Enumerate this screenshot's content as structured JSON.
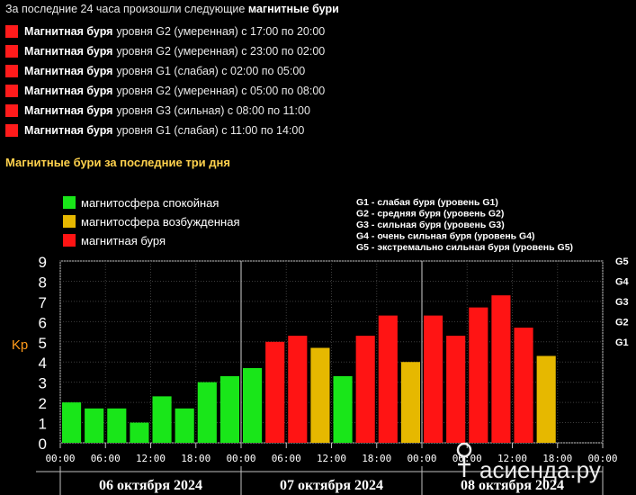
{
  "header": {
    "prefix": "За последние 24 часа произошли следующие",
    "emph": "магнитные бури"
  },
  "storms": [
    {
      "name": "Магнитная буря",
      "detail": "уровня G2 (умеренная) с 17:00 по 20:00"
    },
    {
      "name": "Магнитная буря",
      "detail": "уровня G2 (умеренная) с 23:00 по 02:00"
    },
    {
      "name": "Магнитная буря",
      "detail": "уровня G1 (слабая) с 02:00 по 05:00"
    },
    {
      "name": "Магнитная буря",
      "detail": "уровня G2 (умеренная) с 05:00 по 08:00"
    },
    {
      "name": "Магнитная буря",
      "detail": "уровня G3 (сильная) с 08:00 по 11:00"
    },
    {
      "name": "Магнитная буря",
      "detail": "уровня G1 (слабая) с 11:00 по 14:00"
    }
  ],
  "colors": {
    "quiet": "#19e619",
    "excited": "#e6b800",
    "storm": "#ff1414",
    "storm_marker": "#ff1b1b",
    "subtitle": "#ffd24d",
    "kp": "#ff9a1a"
  },
  "chart_data": {
    "type": "bar",
    "title": "Магнитные бури за последние три дня",
    "ylabel": "Kp",
    "ylim": [
      0,
      9
    ],
    "y_ticks": [
      0,
      1,
      2,
      3,
      4,
      5,
      6,
      7,
      8,
      9
    ],
    "g_ticks": [
      {
        "label": "G1",
        "kp": 5
      },
      {
        "label": "G2",
        "kp": 6
      },
      {
        "label": "G3",
        "kp": 7
      },
      {
        "label": "G4",
        "kp": 8
      },
      {
        "label": "G5",
        "kp": 9
      }
    ],
    "x_tick_labels": [
      "00:00",
      "06:00",
      "12:00",
      "18:00",
      "00:00",
      "06:00",
      "12:00",
      "18:00",
      "00:00",
      "06:00",
      "12:00",
      "18:00",
      "00:00"
    ],
    "days": [
      "06 октября 2024",
      "07 октября 2024",
      "08 октября 2024"
    ],
    "slots_per_day": 8,
    "series": [
      {
        "values": [
          2.0,
          1.7,
          1.7,
          1.0,
          2.3,
          1.7,
          3.0,
          3.3,
          3.7,
          5.0,
          5.3,
          4.7,
          3.3,
          5.3,
          6.3,
          4.0,
          6.3,
          5.3,
          6.7,
          7.3,
          5.7,
          4.3
        ],
        "levels": [
          "quiet",
          "quiet",
          "quiet",
          "quiet",
          "quiet",
          "quiet",
          "quiet",
          "quiet",
          "quiet",
          "storm",
          "storm",
          "excited",
          "quiet",
          "storm",
          "storm",
          "excited",
          "storm",
          "storm",
          "storm",
          "storm",
          "storm",
          "excited"
        ]
      }
    ],
    "legend": [
      {
        "label": "магнитосфера спокойная",
        "level": "quiet"
      },
      {
        "label": "магнитосфера возбужденная",
        "level": "excited"
      },
      {
        "label": "магнитная буря",
        "level": "storm"
      }
    ],
    "g_legend": [
      "G1 - слабая буря (уровень G1)",
      "G2 - средняя буря (уровень G2)",
      "G3 - сильная буря (уровень G3)",
      "G4 - очень сильная буря (уровень G4)",
      "G5 - экстремально сильная буря (уровень G5)"
    ]
  },
  "watermark": "асиенда.ру"
}
